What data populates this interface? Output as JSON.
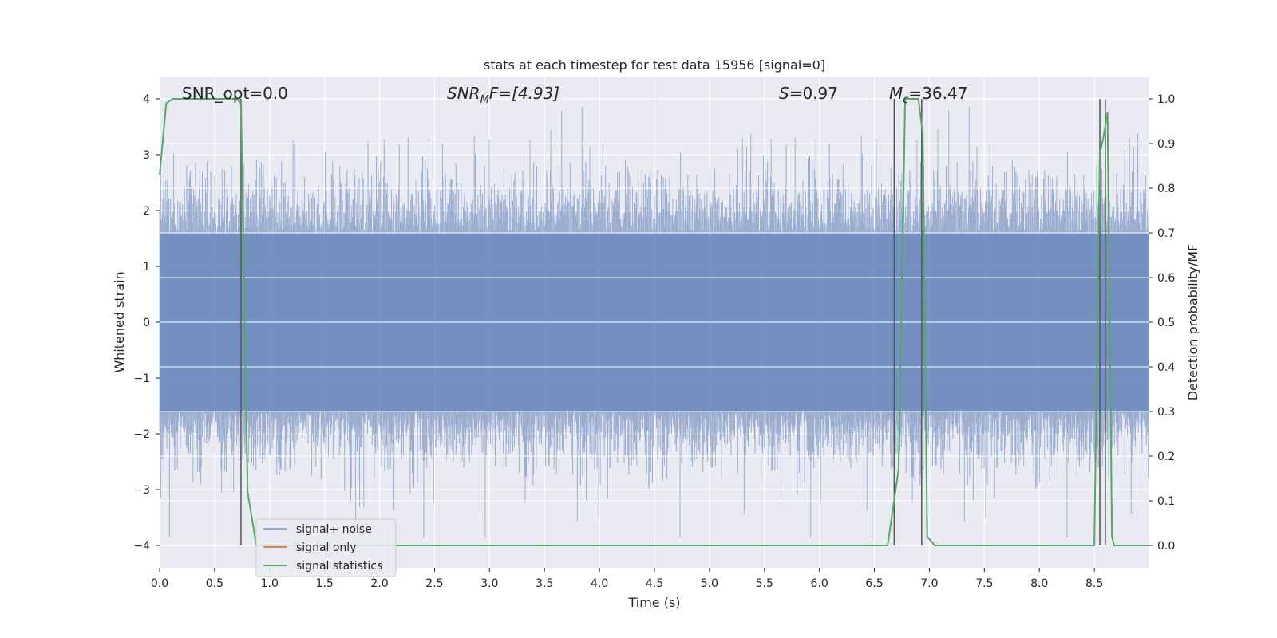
{
  "chart_data": {
    "type": "line",
    "title": "stats at each timestep for test data 15956 [signal=0]",
    "xlabel": "Time (s)",
    "ylabel": "Whitened strain",
    "y2label": "Detection probability/MF",
    "xlim": [
      0,
      9.0
    ],
    "ylim": [
      -4.4,
      4.4
    ],
    "y2lim": [
      -0.05,
      1.05
    ],
    "grid": true,
    "legend_position": "lower-left",
    "x_ticks": [
      "0.0",
      "0.5",
      "1.0",
      "1.5",
      "2.0",
      "2.5",
      "3.0",
      "3.5",
      "4.0",
      "4.5",
      "5.0",
      "5.5",
      "6.0",
      "6.5",
      "7.0",
      "7.5",
      "8.0",
      "8.5"
    ],
    "y_ticks": [
      "−4",
      "−3",
      "−2",
      "−1",
      "0",
      "1",
      "2",
      "3",
      "4"
    ],
    "y2_ticks": [
      "0.0",
      "0.1",
      "0.2",
      "0.3",
      "0.4",
      "0.5",
      "0.6",
      "0.7",
      "0.8",
      "0.9",
      "1.0"
    ],
    "annotations": {
      "snr_opt": "SNR_opt=0.0",
      "snr_mf_prefix": "SNR",
      "snr_mf_sub": "M",
      "snr_mf_suffix": "F=[4.93]",
      "s_var": "S",
      "s_value": "=0.97",
      "mc_var": "M",
      "mc_sub": "c",
      "mc_value": "=36.47"
    },
    "series": [
      {
        "name": "signal+ noise",
        "color": "#4c72b0",
        "axis": "left",
        "note_values": "whitened strain noise, approx. gaussian amplitude ~0.8, range -3.8 to 4.0"
      },
      {
        "name": "signal only",
        "color": "#dd8452",
        "axis": "left",
        "values": []
      },
      {
        "name": "signal statistics",
        "color": "#55a868",
        "axis": "right",
        "x": [
          0.0,
          0.06,
          0.12,
          0.2,
          0.6,
          0.7,
          0.74,
          0.8,
          0.88,
          1.0,
          2.0,
          3.0,
          4.0,
          5.0,
          6.0,
          6.55,
          6.62,
          6.72,
          6.78,
          6.85,
          6.9,
          6.94,
          6.98,
          7.05,
          7.5,
          8.0,
          8.45,
          8.5,
          8.55,
          8.58,
          8.62,
          8.66,
          8.68,
          8.75,
          9.0
        ],
        "y": [
          0.83,
          0.99,
          1.0,
          1.0,
          1.0,
          1.0,
          0.99,
          0.12,
          0.0,
          0.0,
          0.0,
          0.0,
          0.0,
          0.0,
          0.0,
          0.0,
          0.0,
          0.17,
          1.0,
          1.0,
          1.0,
          0.92,
          0.02,
          0.0,
          0.0,
          0.0,
          0.0,
          0.0,
          0.88,
          0.91,
          0.97,
          0.02,
          0.0,
          0.0,
          0.0
        ]
      }
    ],
    "vlines": [
      0.74,
      6.68,
      6.93,
      8.55,
      8.6
    ],
    "legend": [
      "signal+ noise",
      "signal only",
      "signal statistics"
    ]
  }
}
